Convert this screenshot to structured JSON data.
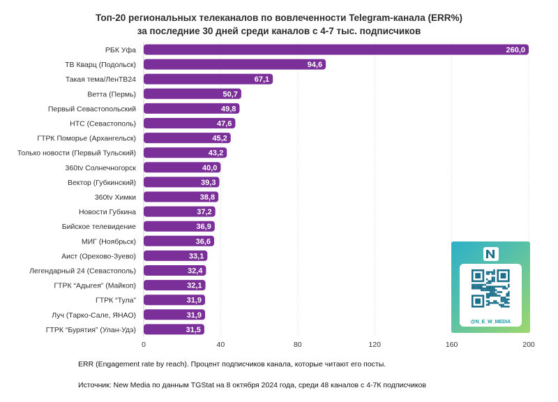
{
  "title_line1": "Топ-20 региональных телеканалов по вовлеченности Telegram-канала (ERR%)",
  "title_line2": "за последние 30 дней среди каналов с 4-7 тыс. подписчиков",
  "footnote_err": "ERR (Engagement rate by reach). Процент подписчиков канала, которые читают его посты.",
  "footnote_source": "Источник: New Media по данным TGStat на 8 октября 2024 года, среди 48 каналов с 4-7К подписчиков",
  "qr_handle": "@N_E_W_MEDIA",
  "colors": {
    "bar": "#7b2f98",
    "grid": "#dcdcdc",
    "qr_dark": "#1b6f8a"
  },
  "chart_data": {
    "type": "bar",
    "orientation": "horizontal",
    "categories": [
      "РБК Уфа",
      "ТВ Кварц (Подольск)",
      "Такая тема/ЛенТВ24",
      "Ветта (Пермь)",
      "Первый Севастопольский",
      "НТС (Севастополь)",
      "ГТРК Поморье (Архангельск)",
      "Только новости (Первый Тульский)",
      "360tv Солнечногорск",
      "Вектор (Губкинский)",
      "360tv Химки",
      "Новости Губкина",
      "Бийское телевидение",
      "МИГ (Ноябрьск)",
      "Аист (Орехово-Зуево)",
      "Легендарный 24 (Севастополь)",
      "ГТРК “Адыгея” (Майкоп)",
      "ГТРК “Тула”",
      "Луч (Тарко-Сале, ЯНАО)",
      "ГТРК “Бурятия” (Улан-Удэ)"
    ],
    "values": [
      260.0,
      94.6,
      67.1,
      50.7,
      49.8,
      47.6,
      45.2,
      43.2,
      40.0,
      39.3,
      38.8,
      37.2,
      36.9,
      36.6,
      33.1,
      32.4,
      32.1,
      31.9,
      31.9,
      31.5
    ],
    "value_labels": [
      "260,0",
      "94,6",
      "67,1",
      "50,7",
      "49,8",
      "47,6",
      "45,2",
      "43,2",
      "40,0",
      "39,3",
      "38,8",
      "37,2",
      "36,9",
      "36,6",
      "33,1",
      "32,4",
      "32,1",
      "31,9",
      "31,9",
      "31,5"
    ],
    "xlim": [
      0,
      200
    ],
    "xticks": [
      "0",
      "40",
      "80",
      "120",
      "160",
      "200"
    ],
    "grid": true,
    "note": "first bar value exceeds axis and is clipped at the axis maximum"
  }
}
